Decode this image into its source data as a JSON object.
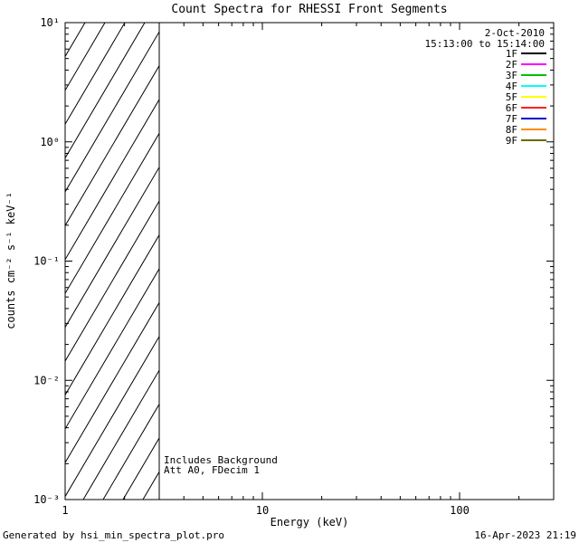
{
  "chart_data": {
    "type": "line",
    "title": "Count Spectra for RHESSI Front Segments",
    "xlabel": "Energy (keV)",
    "ylabel": "counts cm⁻² s⁻¹ keV⁻¹",
    "x_scale": "log",
    "y_scale": "log",
    "xlim": [
      1,
      300
    ],
    "ylim": [
      0.001,
      10
    ],
    "x_major_ticks": [
      1,
      10,
      100
    ],
    "x_tick_labels": [
      "1",
      "10",
      "100"
    ],
    "y_major_ticks": [
      0.001,
      0.01,
      0.1,
      1,
      10
    ],
    "y_tick_labels": [
      "10⁻³",
      "10⁻²",
      "10⁻¹",
      "10⁰",
      "10¹"
    ],
    "grid": false,
    "legend_position": "upper right inside",
    "hatched_region": {
      "x_start": 1,
      "x_end": 3,
      "style": "diagonal-hatch"
    },
    "legend": [
      {
        "label": "1F",
        "color": "#000000"
      },
      {
        "label": "2F",
        "color": "#ff00ff"
      },
      {
        "label": "3F",
        "color": "#00c000"
      },
      {
        "label": "4F",
        "color": "#00ffff"
      },
      {
        "label": "5F",
        "color": "#ffff00"
      },
      {
        "label": "6F",
        "color": "#ff2020"
      },
      {
        "label": "7F",
        "color": "#0000cc"
      },
      {
        "label": "8F",
        "color": "#ff8c00"
      },
      {
        "label": "9F",
        "color": "#6b6b00"
      }
    ],
    "annotations": {
      "date": "2-Oct-2010",
      "time_range": "15:13:00 to 15:14:00",
      "background_note": "Includes Background",
      "attenuator_note": "Att A0, FDecim 1"
    }
  },
  "footer": {
    "generated_by": "Generated by hsi_min_spectra_plot.pro",
    "generated_at": "16-Apr-2023 21:19"
  }
}
